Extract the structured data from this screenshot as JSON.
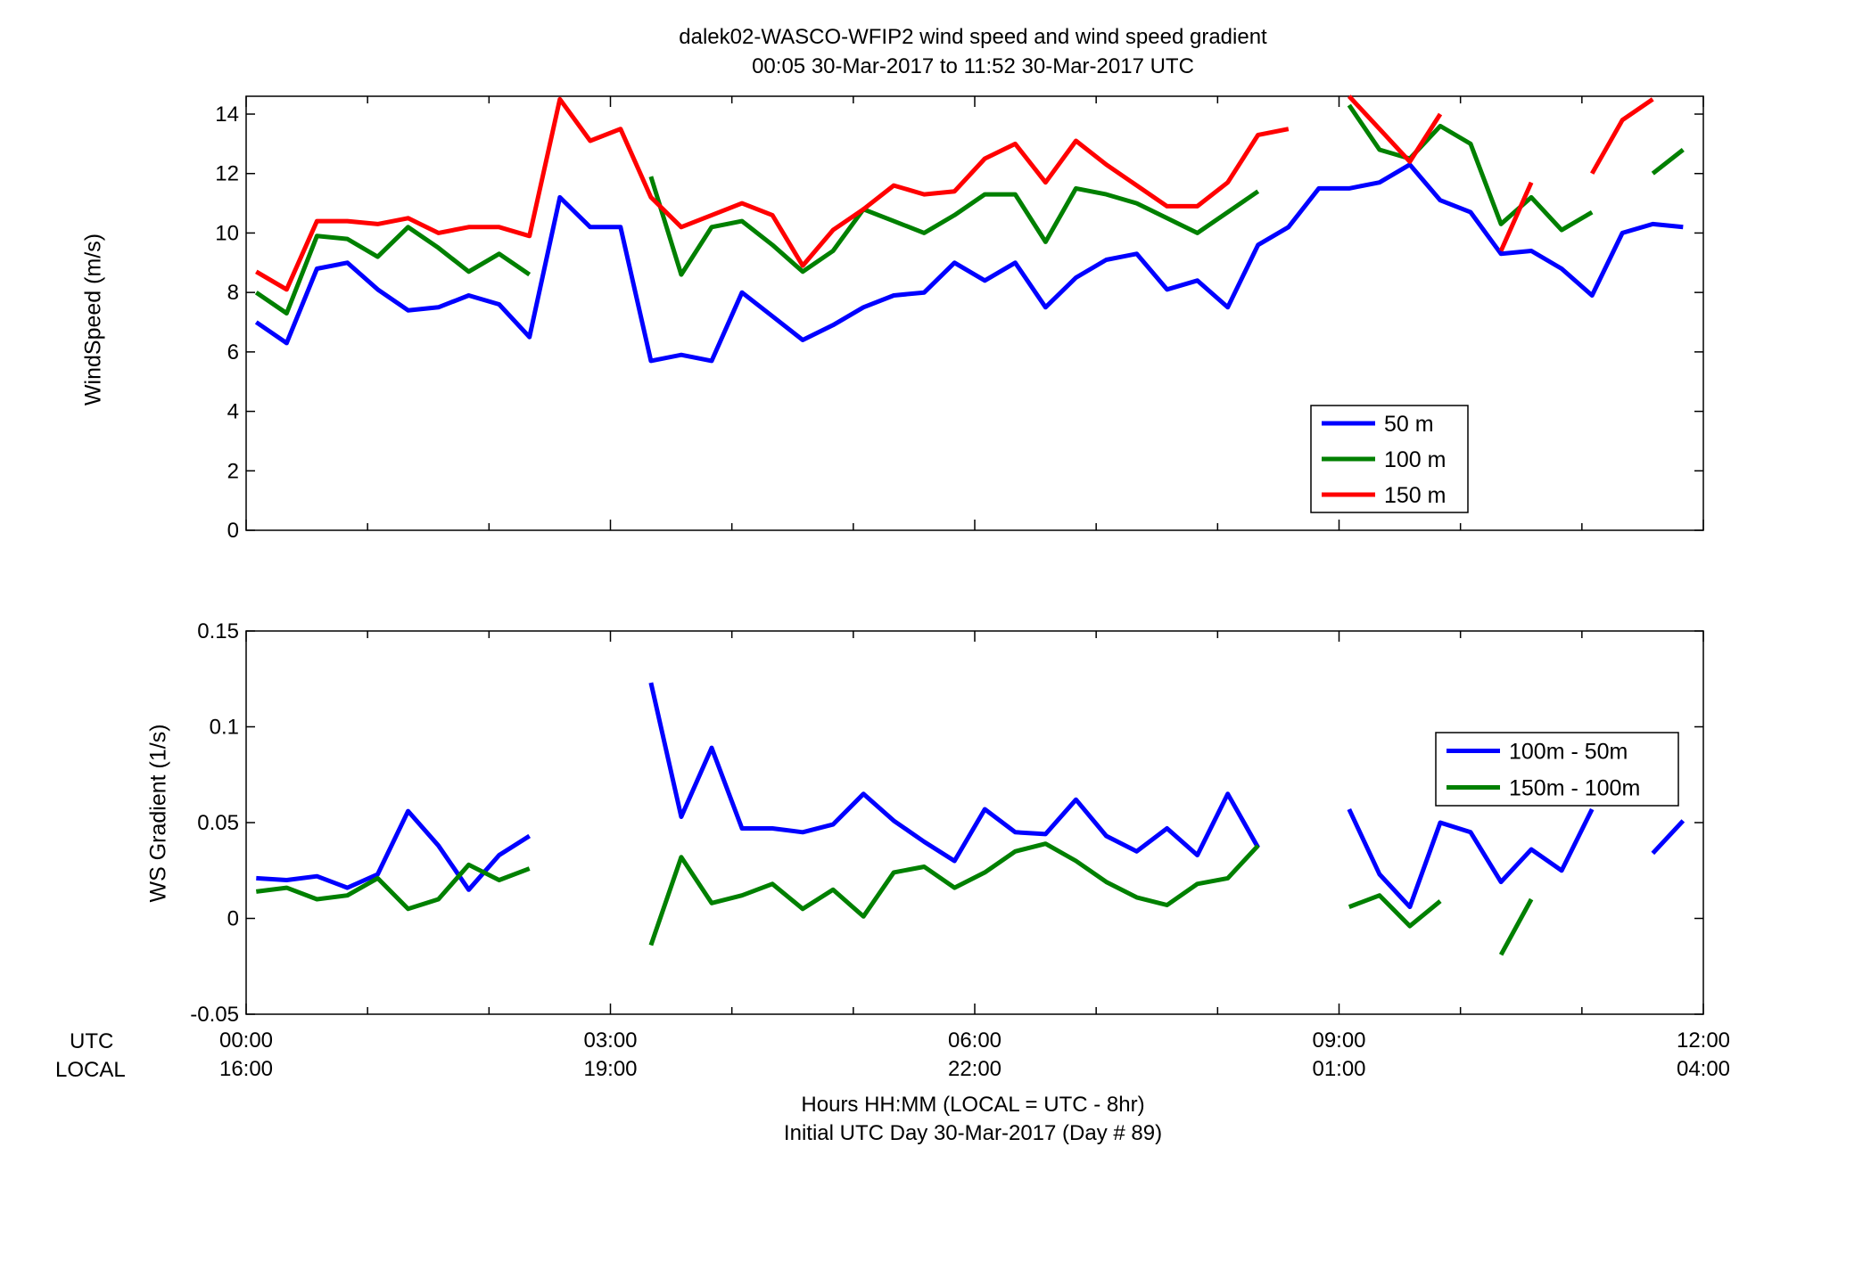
{
  "title": {
    "line1": "dalek02-WASCO-WFIP2  wind speed and wind speed gradient",
    "line2": "00:05 30-Mar-2017 to 11:52 30-Mar-2017  UTC"
  },
  "row_labels": {
    "utc": "UTC",
    "local": "LOCAL"
  },
  "x_ticks_utc": [
    "00:00",
    "03:00",
    "06:00",
    "09:00",
    "12:00"
  ],
  "x_ticks_local": [
    "16:00",
    "19:00",
    "22:00",
    "01:00",
    "04:00"
  ],
  "xlabel": {
    "line1": "Hours HH:MM  (LOCAL = UTC - 8hr)",
    "line2": "Initial UTC Day 30-Mar-2017 (Day # 89)"
  },
  "chart_data": [
    {
      "type": "line",
      "ylabel": "WindSpeed (m/s)",
      "xlim": [
        0,
        12
      ],
      "ylim": [
        0,
        14.6
      ],
      "yticks": [
        "0",
        "2",
        "4",
        "6",
        "8",
        "10",
        "12",
        "14"
      ],
      "ytick_values": [
        0,
        2,
        4,
        6,
        8,
        10,
        12,
        14
      ],
      "legend_position": "lower-right",
      "x": [
        0.0833,
        0.3333,
        0.5833,
        0.8333,
        1.0833,
        1.3333,
        1.5833,
        1.8333,
        2.0833,
        2.3333,
        2.5833,
        2.8333,
        3.0833,
        3.3333,
        3.5833,
        3.8333,
        4.0833,
        4.3333,
        4.5833,
        4.8333,
        5.0833,
        5.3333,
        5.5833,
        5.8333,
        6.0833,
        6.3333,
        6.5833,
        6.8333,
        7.0833,
        7.3333,
        7.5833,
        7.8333,
        8.0833,
        8.3333,
        8.5833,
        8.8333,
        9.0833,
        9.3333,
        9.5833,
        9.8333,
        10.0833,
        10.3333,
        10.5833,
        10.8333,
        11.0833,
        11.3333,
        11.5833,
        11.8333
      ],
      "series": [
        {
          "name": "50 m",
          "color": "#0000ff",
          "values": [
            7.0,
            6.3,
            8.8,
            9.0,
            8.1,
            7.4,
            7.5,
            7.9,
            7.6,
            6.5,
            11.2,
            10.2,
            10.2,
            5.7,
            5.9,
            5.7,
            8.0,
            7.2,
            6.4,
            6.9,
            7.5,
            7.9,
            8.0,
            9.0,
            8.4,
            9.0,
            7.5,
            8.5,
            9.1,
            9.3,
            8.1,
            8.4,
            7.5,
            9.6,
            10.2,
            11.5,
            11.5,
            11.7,
            12.3,
            11.1,
            10.7,
            9.3,
            9.4,
            8.8,
            7.9,
            10.0,
            10.3,
            10.2
          ]
        },
        {
          "name": "100 m",
          "color": "#008000",
          "values": [
            8.0,
            7.3,
            9.9,
            9.8,
            9.2,
            10.2,
            9.5,
            8.7,
            9.3,
            8.6,
            null,
            null,
            null,
            11.9,
            8.6,
            10.2,
            10.4,
            9.6,
            8.7,
            9.4,
            10.8,
            10.4,
            10.0,
            10.6,
            11.3,
            11.3,
            9.7,
            11.5,
            11.3,
            11.0,
            10.5,
            10.0,
            10.7,
            11.4,
            null,
            null,
            14.3,
            12.8,
            12.5,
            13.6,
            13.0,
            10.3,
            11.2,
            10.1,
            10.7,
            null,
            12.0,
            12.8
          ]
        },
        {
          "name": "150 m",
          "color": "#ff0000",
          "values": [
            8.7,
            8.1,
            10.4,
            10.4,
            10.3,
            10.5,
            10.0,
            10.2,
            10.2,
            9.9,
            14.5,
            13.1,
            13.5,
            11.2,
            10.2,
            10.6,
            11.0,
            10.6,
            8.9,
            10.1,
            10.8,
            11.6,
            11.3,
            11.4,
            12.5,
            13.0,
            11.7,
            13.1,
            12.3,
            11.6,
            10.9,
            10.9,
            11.7,
            13.3,
            13.5,
            null,
            14.8,
            13.5,
            12.4,
            14.0,
            null,
            9.4,
            11.7,
            null,
            12.0,
            13.8,
            14.5,
            null
          ]
        }
      ]
    },
    {
      "type": "line",
      "ylabel": "WS Gradient (1/s)",
      "xlim": [
        0,
        12
      ],
      "ylim": [
        -0.05,
        0.15
      ],
      "yticks": [
        "-0.05",
        "0",
        "0.05",
        "0.1",
        "0.15"
      ],
      "ytick_values": [
        -0.05,
        0,
        0.05,
        0.1,
        0.15
      ],
      "legend_position": "upper-right",
      "x": [
        0.0833,
        0.3333,
        0.5833,
        0.8333,
        1.0833,
        1.3333,
        1.5833,
        1.8333,
        2.0833,
        2.3333,
        2.5833,
        2.8333,
        3.0833,
        3.3333,
        3.5833,
        3.8333,
        4.0833,
        4.3333,
        4.5833,
        4.8333,
        5.0833,
        5.3333,
        5.5833,
        5.8333,
        6.0833,
        6.3333,
        6.5833,
        6.8333,
        7.0833,
        7.3333,
        7.5833,
        7.8333,
        8.0833,
        8.3333,
        8.5833,
        8.8333,
        9.0833,
        9.3333,
        9.5833,
        9.8333,
        10.0833,
        10.3333,
        10.5833,
        10.8333,
        11.0833,
        11.3333,
        11.5833,
        11.8333
      ],
      "series": [
        {
          "name": "100m - 50m",
          "color": "#0000ff",
          "values": [
            0.021,
            0.02,
            0.022,
            0.016,
            0.023,
            0.056,
            0.038,
            0.015,
            0.033,
            0.043,
            null,
            null,
            null,
            0.123,
            0.053,
            0.089,
            0.047,
            0.047,
            0.045,
            0.049,
            0.065,
            0.051,
            0.04,
            0.03,
            0.057,
            0.045,
            0.044,
            0.062,
            0.043,
            0.035,
            0.047,
            0.033,
            0.065,
            0.037,
            null,
            null,
            0.057,
            0.023,
            0.006,
            0.05,
            0.045,
            0.019,
            0.036,
            0.025,
            0.057,
            null,
            0.034,
            0.051
          ]
        },
        {
          "name": "150m - 100m",
          "color": "#008000",
          "values": [
            0.014,
            0.016,
            0.01,
            0.012,
            0.021,
            0.005,
            0.01,
            0.028,
            0.02,
            0.026,
            null,
            null,
            null,
            -0.014,
            0.032,
            0.008,
            0.012,
            0.018,
            0.005,
            0.015,
            0.001,
            0.024,
            0.027,
            0.016,
            0.024,
            0.035,
            0.039,
            0.03,
            0.019,
            0.011,
            0.007,
            0.018,
            0.021,
            0.038,
            null,
            null,
            0.006,
            0.012,
            -0.004,
            0.009,
            null,
            -0.019,
            0.01,
            null,
            null,
            null,
            null,
            null
          ]
        }
      ]
    }
  ]
}
